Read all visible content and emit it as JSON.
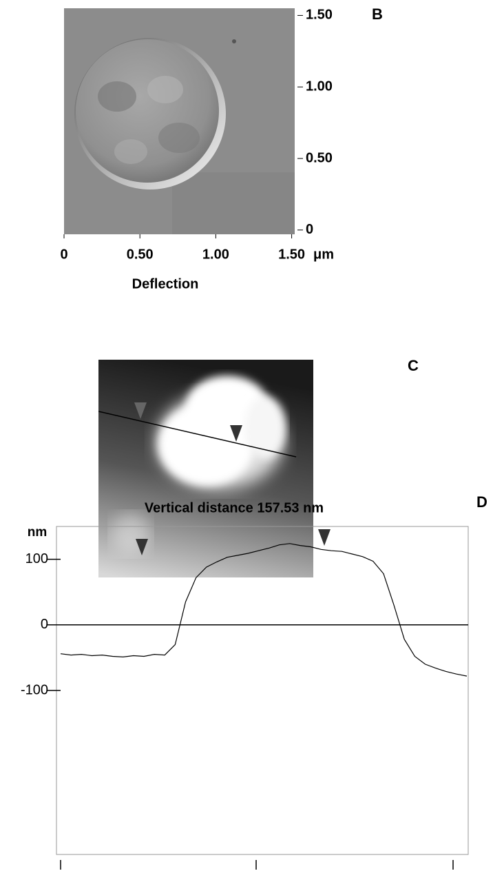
{
  "chart_data": [
    {
      "type": "image",
      "label": "B",
      "xlabel": "Deflection",
      "x_unit": "μm",
      "xlim": [
        0,
        1.52
      ],
      "xticks": [
        0,
        {
          "value": 0.5,
          "label": "0.50"
        },
        {
          "value": 1,
          "label": "1.00"
        },
        {
          "value": 1.5,
          "label": "1.50"
        }
      ],
      "ylim": [
        -0.03,
        1.55
      ],
      "yticks": [
        0,
        {
          "value": 0.5,
          "label": "0.50"
        },
        {
          "value": 1,
          "label": "1.00"
        },
        {
          "value": 1.5,
          "label": "1.50"
        }
      ]
    },
    {
      "type": "image",
      "label": "C"
    },
    {
      "type": "line",
      "label": "D",
      "title": "Vertical distance 157.53 nm",
      "ylabel": "nm",
      "color": "#000000",
      "ylim": [
        -350,
        150
      ],
      "yticks": [
        100,
        0,
        -100
      ],
      "values": [
        -44,
        -46,
        -45,
        -47,
        -46,
        -48,
        -49,
        -47,
        -48,
        -45,
        -46,
        -30,
        35,
        72,
        88,
        96,
        103,
        106,
        109,
        113,
        117,
        122,
        124,
        121,
        119,
        115,
        113,
        112,
        108,
        104,
        97,
        78,
        30,
        -22,
        -48,
        -60,
        -66,
        -71,
        -75,
        -78
      ]
    }
  ]
}
